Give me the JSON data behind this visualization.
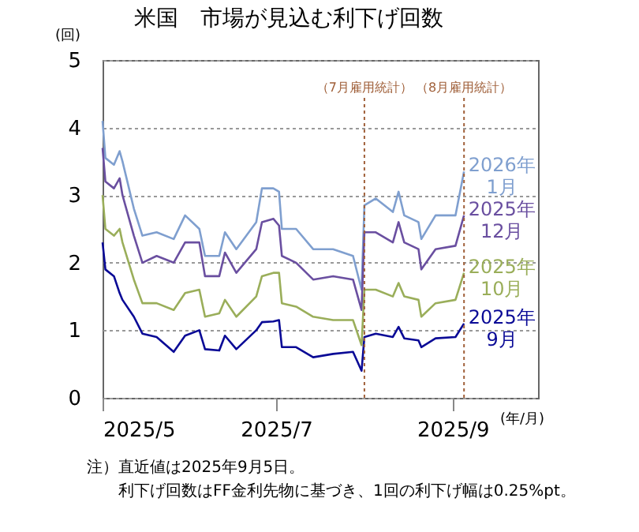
{
  "chart_data": {
    "type": "line",
    "title": "米国　市場が見込む利下げ回数",
    "ylabel": "(回)",
    "xlabel": "(年/月)",
    "x": [
      "2025-05-01",
      "2025-05-02",
      "2025-05-05",
      "2025-05-07",
      "2025-05-08",
      "2025-05-12",
      "2025-05-15",
      "2025-05-20",
      "2025-05-26",
      "2025-05-30",
      "2025-06-04",
      "2025-06-06",
      "2025-06-11",
      "2025-06-13",
      "2025-06-17",
      "2025-06-24",
      "2025-06-26",
      "2025-06-30",
      "2025-07-02",
      "2025-07-03",
      "2025-07-08",
      "2025-07-14",
      "2025-07-21",
      "2025-07-28",
      "2025-07-31",
      "2025-08-01",
      "2025-08-05",
      "2025-08-11",
      "2025-08-13",
      "2025-08-15",
      "2025-08-20",
      "2025-08-21",
      "2025-08-26",
      "2025-09-02",
      "2025-09-05"
    ],
    "series": [
      {
        "name": "2026年\n1月",
        "color": "#7f9fcf",
        "values": [
          4.1,
          3.55,
          3.45,
          3.65,
          3.5,
          2.8,
          2.4,
          2.45,
          2.35,
          2.7,
          2.5,
          2.1,
          2.1,
          2.45,
          2.2,
          2.6,
          3.1,
          3.1,
          3.05,
          2.5,
          2.5,
          2.2,
          2.2,
          2.1,
          1.6,
          2.85,
          2.95,
          2.75,
          3.05,
          2.7,
          2.6,
          2.35,
          2.7,
          2.7,
          3.35
        ]
      },
      {
        "name": "2025年\n12月",
        "color": "#6a4fa0",
        "values": [
          3.7,
          3.2,
          3.1,
          3.25,
          3.0,
          2.4,
          2.0,
          2.1,
          2.0,
          2.3,
          2.3,
          1.8,
          1.8,
          2.15,
          1.85,
          2.2,
          2.6,
          2.65,
          2.55,
          2.1,
          2.0,
          1.75,
          1.8,
          1.75,
          1.3,
          2.45,
          2.45,
          2.3,
          2.6,
          2.3,
          2.2,
          1.9,
          2.2,
          2.25,
          2.7
        ]
      },
      {
        "name": "2025年\n10月",
        "color": "#9aae5a",
        "values": [
          3.0,
          2.5,
          2.4,
          2.5,
          2.3,
          1.75,
          1.4,
          1.4,
          1.3,
          1.55,
          1.6,
          1.2,
          1.25,
          1.45,
          1.2,
          1.5,
          1.8,
          1.85,
          1.85,
          1.4,
          1.35,
          1.2,
          1.15,
          1.15,
          0.78,
          1.6,
          1.6,
          1.5,
          1.7,
          1.5,
          1.45,
          1.2,
          1.4,
          1.45,
          1.85
        ]
      },
      {
        "name": "2025年\n9月",
        "color": "#0a0a96",
        "values": [
          2.3,
          1.9,
          1.8,
          1.55,
          1.45,
          1.2,
          0.95,
          0.9,
          0.68,
          0.92,
          1.0,
          0.72,
          0.7,
          0.92,
          0.72,
          1.0,
          1.12,
          1.13,
          1.15,
          0.75,
          0.75,
          0.6,
          0.65,
          0.68,
          0.4,
          0.9,
          0.95,
          0.9,
          1.05,
          0.88,
          0.85,
          0.75,
          0.88,
          0.9,
          1.1
        ]
      }
    ],
    "xlim": [
      "2025-05-01",
      "2025-10-01"
    ],
    "xticks": [
      {
        "value": "2025-05-01",
        "label": "2025/5"
      },
      {
        "value": "2025-07-01",
        "label": "2025/7"
      },
      {
        "value": "2025-09-01",
        "label": "2025/9"
      }
    ],
    "ylim": [
      0,
      5
    ],
    "yticks": [
      0,
      1,
      2,
      3,
      4,
      5
    ],
    "grid": "y",
    "legend": false,
    "marker": "none",
    "line_style": "solid",
    "ref_lines": [
      {
        "axis": "x",
        "value": "2025-08-01",
        "label": "（7月雇用統計）",
        "color": "#a0603a",
        "line_style": "dotted"
      },
      {
        "axis": "x",
        "value": "2025-09-05",
        "label": "（8月雇用統計）",
        "color": "#a0603a",
        "line_style": "dotted"
      }
    ],
    "annotations": [
      "注）直近値は2025年9月5日。",
      "利下げ回数はFF金利先物に基づき、1回の利下げ幅は0.25%pt。"
    ]
  }
}
